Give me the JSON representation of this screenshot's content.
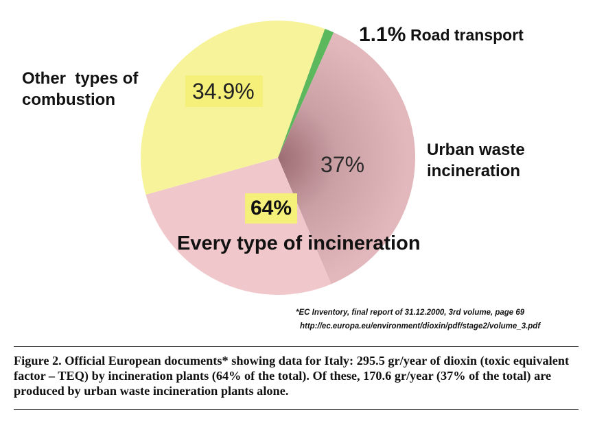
{
  "chart_data": {
    "type": "pie",
    "slices": [
      {
        "label": "Road transport",
        "value": 1.1,
        "display": "1.1%",
        "color": "#5cb85c"
      },
      {
        "label": "Urban waste incineration",
        "value": 37,
        "display": "37%",
        "color": "#d8a9ad"
      },
      {
        "label": "",
        "value": 27,
        "display": "",
        "color": "#f0c8cc"
      },
      {
        "label": "Other types of combustion",
        "value": 34.9,
        "display": "34.9%",
        "color": "#f7f39a"
      }
    ],
    "group_annotation": {
      "value": "64%",
      "text": "Every type of incineration"
    },
    "highlight_color": "#f5f07a"
  },
  "labels": {
    "road_transport_pct": "1.1%",
    "road_transport": "Road transport",
    "other_line1": "Other  types of",
    "other_line2": "combustion",
    "urban_line1": "Urban waste",
    "urban_line2": "incineration"
  },
  "footnote": {
    "line1": "*EC Inventory, final report of  31.12.2000, 3rd volume, page 69",
    "line2": "http://ec.europa.eu/environment/dioxin/pdf/stage2/volume_3.pdf"
  },
  "caption": "Figure 2. Official European documents* showing data for Italy: 295.5 gr/year of dioxin (toxic equivalent factor – TEQ) by incineration plants (64% of the total). Of these, 170.6 gr/year (37% of the total) are produced by urban waste incineration plants alone."
}
